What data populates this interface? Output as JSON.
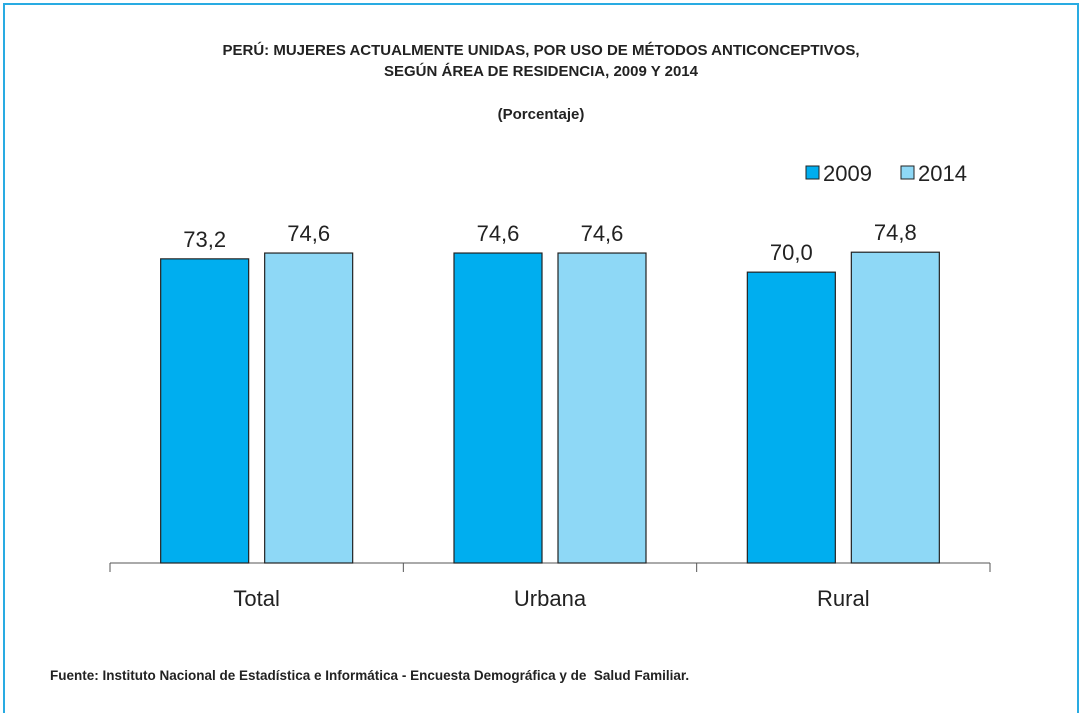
{
  "chart_data": {
    "type": "bar",
    "title": "PERÚ: MUJERES ACTUALMENTE UNIDAS, POR USO DE MÉTODOS ANTICONCEPTIVOS, SEGÚN ÁREA DE RESIDENCIA, 2009 Y 2014",
    "subtitle": "(Porcentaje)",
    "categories": [
      "Total",
      "Urbana",
      "Rural"
    ],
    "series": [
      {
        "name": "2009",
        "color": "#00aeef",
        "values": [
          73.2,
          74.6,
          70.0
        ],
        "value_labels": [
          "73,2",
          "74,6",
          "70,0"
        ]
      },
      {
        "name": "2014",
        "color": "#8ed8f6",
        "values": [
          74.6,
          74.6,
          74.8
        ],
        "value_labels": [
          "74,6",
          "74,6",
          "74,8"
        ]
      }
    ],
    "legend": "top-right",
    "source": "Fuente: Instituto Nacional de Estadística e Informática - Encuesta Demográfica y de  Salud Familiar."
  }
}
